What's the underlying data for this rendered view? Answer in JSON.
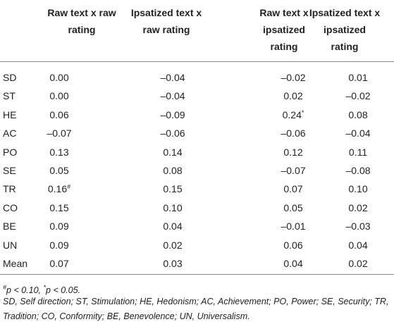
{
  "table": {
    "columns": [
      [
        "Raw text x raw",
        "rating"
      ],
      [
        "Ipsatized text x",
        "raw rating"
      ],
      [
        "Raw text x",
        "ipsatized",
        "rating"
      ],
      [
        "Ipsatized text x",
        "ipsatized",
        "rating"
      ]
    ],
    "rows": [
      [
        "SD",
        "0.00",
        "–0.04",
        "–0.02",
        "0.01"
      ],
      [
        "ST",
        "0.00",
        "–0.04",
        "0.02",
        "–0.02"
      ],
      [
        "HE",
        "0.06",
        "–0.09",
        {
          "text": "0.24",
          "sup": "*"
        },
        "0.08"
      ],
      [
        "AC",
        "–0.07",
        "–0.06",
        "–0.06",
        "–0.04"
      ],
      [
        "PO",
        "0.13",
        "0.14",
        "0.12",
        "0.11"
      ],
      [
        "SE",
        "0.05",
        "0.08",
        "–0.07",
        "–0.08"
      ],
      [
        "TR",
        {
          "text": "0.16",
          "sup": "#"
        },
        "0.15",
        "0.07",
        "0.10"
      ],
      [
        "CO",
        "0.15",
        "0.10",
        "0.05",
        "0.02"
      ],
      [
        "BE",
        "0.09",
        "0.04",
        "–0.01",
        "–0.03"
      ],
      [
        "UN",
        "0.09",
        "0.02",
        "0.06",
        "0.04"
      ],
      [
        "Mean",
        "0.07",
        "0.03",
        "0.04",
        "0.02"
      ]
    ]
  },
  "footnotes": [
    [
      {
        "sup": "#"
      },
      {
        "text": "p < 0.10, "
      },
      {
        "sup": "*"
      },
      {
        "text": "p < 0.05."
      }
    ],
    "SD, Self direction; ST, Stimulation; HE, Hedonism; AC, Achievement; PO, Power; SE, Security; TR, Tradition; CO, Conformity; BE, Benevolence; UN, Universalism."
  ]
}
